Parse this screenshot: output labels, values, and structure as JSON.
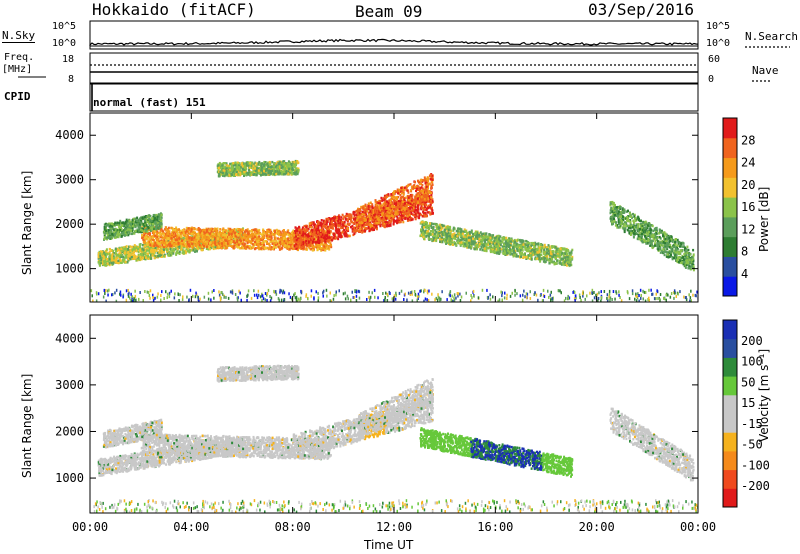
{
  "header": {
    "station": "Hokkaido (fitACF)",
    "beam": "Beam 09",
    "date": "03/Sep/2016"
  },
  "noise_panel": {
    "left_label": "N.Sky",
    "left_ticks": [
      "10^5",
      "10^0"
    ],
    "right_label": "N.Search",
    "right_ticks": [
      "10^5",
      "10^0"
    ]
  },
  "freq_panel": {
    "left_label_line1": "Freq.",
    "left_label_line2": "[MHz]",
    "left_ticks": [
      "18",
      "8"
    ],
    "right_label": "Nave",
    "right_ticks": [
      "60",
      "0"
    ]
  },
  "cpid_panel": {
    "label": "CPID",
    "mode": "normal (fast) 151"
  },
  "colors": {
    "power_scale": [
      "#0a19e6",
      "#2a4fa0",
      "#2e7d32",
      "#5b9e5b",
      "#8bc34a",
      "#f2c12e",
      "#f59a1b",
      "#f0641e",
      "#e11b1b"
    ],
    "velocity_scale": [
      "#e11b1b",
      "#f04a1e",
      "#f58a1b",
      "#f5b21e",
      "#c8c8c8",
      "#c8c8c8",
      "#66c83a",
      "#2e8b3a",
      "#2a4fa0",
      "#1a2fb4"
    ]
  },
  "chart_data": [
    {
      "type": "heatmap",
      "panel": "power",
      "ylabel": "Slant Range [km]",
      "yticks": [
        "1000",
        "2000",
        "3000",
        "4000"
      ],
      "ylim": [
        250,
        4500
      ],
      "xticks": [
        "00:00",
        "04:00",
        "08:00",
        "12:00",
        "16:00",
        "20:00",
        "00:00"
      ],
      "colorbar_label": "Power [dB]",
      "colorbar_ticks": [
        "4",
        "8",
        "12",
        "16",
        "20",
        "24",
        "28"
      ],
      "colorbar_range": [
        0,
        30
      ]
    },
    {
      "type": "heatmap",
      "panel": "velocity",
      "ylabel": "Slant Range [km]",
      "yticks": [
        "1000",
        "2000",
        "3000",
        "4000"
      ],
      "ylim": [
        250,
        4500
      ],
      "xticks": [
        "00:00",
        "04:00",
        "08:00",
        "12:00",
        "16:00",
        "20:00",
        "00:00"
      ],
      "xlabel": "Time UT",
      "colorbar_label": "Velocity [m s⁻¹]",
      "colorbar_ticks": [
        "-200",
        "-100",
        "-50",
        "-15",
        "15",
        "50",
        "100",
        "200"
      ],
      "colorbar_range": [
        -250,
        250
      ]
    }
  ]
}
